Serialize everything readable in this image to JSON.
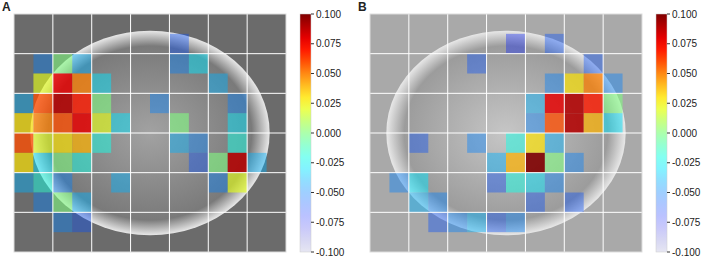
{
  "chart_data": [
    {
      "type": "heatmap",
      "title": "A",
      "xlim": [
        0,
        70
      ],
      "ylim": [
        0,
        60
      ],
      "xticks": [
        10,
        20,
        30,
        40,
        50,
        60
      ],
      "yticks": [
        10,
        20,
        30,
        40,
        50
      ],
      "grid": true,
      "tick_labels": false,
      "cells": [
        [
          null,
          null,
          null,
          null,
          null,
          null,
          null,
          null,
          null,
          null,
          null,
          null,
          null,
          null
        ],
        [
          null,
          null,
          null,
          null,
          null,
          null,
          null,
          null,
          -0.06,
          null,
          null,
          null,
          null,
          null
        ],
        [
          null,
          -0.05,
          0.0,
          -0.04,
          null,
          null,
          null,
          null,
          -0.05,
          -0.03,
          null,
          null,
          null,
          null
        ],
        [
          null,
          0.02,
          0.08,
          0.05,
          -0.03,
          null,
          null,
          null,
          null,
          null,
          -0.04,
          null,
          null,
          null
        ],
        [
          -0.04,
          0.06,
          0.09,
          0.07,
          0.0,
          null,
          null,
          -0.05,
          null,
          null,
          null,
          -0.05,
          null,
          null
        ],
        [
          0.03,
          0.05,
          0.06,
          0.08,
          0.02,
          -0.03,
          null,
          null,
          0.0,
          null,
          null,
          -0.03,
          null,
          null
        ],
        [
          0.06,
          0.02,
          0.03,
          0.04,
          -0.02,
          null,
          null,
          null,
          -0.04,
          -0.05,
          null,
          -0.02,
          null,
          null
        ],
        [
          0.03,
          -0.03,
          0.0,
          -0.02,
          null,
          null,
          null,
          null,
          null,
          -0.06,
          0.0,
          0.09,
          -0.04,
          null
        ],
        [
          -0.04,
          -0.02,
          -0.05,
          null,
          null,
          -0.04,
          null,
          null,
          null,
          null,
          -0.05,
          0.02,
          null,
          null
        ],
        [
          null,
          -0.05,
          0.0,
          -0.04,
          null,
          null,
          null,
          null,
          null,
          null,
          null,
          null,
          null,
          null
        ],
        [
          null,
          null,
          -0.05,
          -0.06,
          null,
          null,
          null,
          null,
          null,
          null,
          null,
          null,
          null,
          null
        ],
        [
          null,
          null,
          null,
          null,
          null,
          null,
          null,
          null,
          null,
          null,
          null,
          null,
          null,
          null
        ]
      ],
      "colorbar_range": [
        -0.1,
        0.1
      ],
      "colorbar_ticks": [
        {
          "value": 0.1,
          "label": "0.100"
        },
        0.075,
        {
          "value": 0.05,
          "label": "0.050"
        },
        0.025,
        {
          "value": 0,
          "label": "0.000"
        },
        -0.025,
        {
          "value": -0.05,
          "label": "-0.050"
        },
        -0.075,
        {
          "value": -0.1,
          "label": "-0.100"
        }
      ]
    },
    {
      "type": "heatmap",
      "title": "B",
      "xlim": [
        0,
        70
      ],
      "ylim": [
        0,
        60
      ],
      "xticks": [
        10,
        20,
        30,
        40,
        50,
        60
      ],
      "yticks": [
        10,
        20,
        30,
        40,
        50
      ],
      "grid": true,
      "tick_labels": false,
      "cells": [
        [
          null,
          null,
          null,
          null,
          null,
          null,
          null,
          null,
          null,
          null,
          null,
          null,
          null,
          null
        ],
        [
          null,
          null,
          null,
          null,
          null,
          null,
          null,
          -0.07,
          null,
          -0.06,
          null,
          null,
          null,
          null
        ],
        [
          null,
          null,
          null,
          null,
          null,
          -0.06,
          null,
          null,
          null,
          null,
          null,
          -0.06,
          null,
          null
        ],
        [
          null,
          null,
          null,
          null,
          null,
          null,
          null,
          null,
          null,
          -0.05,
          0.03,
          0.05,
          -0.05,
          null
        ],
        [
          null,
          null,
          null,
          null,
          null,
          null,
          null,
          null,
          -0.04,
          0.08,
          0.09,
          0.07,
          0.0,
          null
        ],
        [
          null,
          null,
          null,
          null,
          null,
          null,
          null,
          null,
          -0.05,
          0.06,
          0.09,
          0.04,
          -0.03,
          null
        ],
        [
          null,
          null,
          -0.06,
          null,
          null,
          -0.05,
          null,
          -0.02,
          0.03,
          -0.04,
          null,
          null,
          null,
          null
        ],
        [
          null,
          null,
          null,
          null,
          null,
          null,
          -0.04,
          0.04,
          0.1,
          0.0,
          -0.05,
          null,
          null,
          null
        ],
        [
          null,
          -0.05,
          -0.03,
          null,
          null,
          null,
          -0.06,
          -0.02,
          -0.03,
          -0.05,
          null,
          null,
          null,
          null
        ],
        [
          null,
          null,
          -0.04,
          -0.05,
          null,
          null,
          null,
          null,
          -0.06,
          null,
          -0.06,
          null,
          null,
          null
        ],
        [
          null,
          null,
          null,
          -0.06,
          -0.05,
          -0.04,
          -0.06,
          -0.05,
          null,
          null,
          null,
          null,
          null,
          null
        ],
        [
          null,
          null,
          null,
          null,
          null,
          null,
          null,
          null,
          null,
          null,
          null,
          null,
          null,
          null
        ]
      ],
      "colorbar_range": [
        -0.1,
        0.1
      ],
      "colorbar_ticks": [
        {
          "value": 0.1,
          "label": "0.100"
        },
        0.075,
        {
          "value": 0.05,
          "label": "0.050"
        },
        0.025,
        {
          "value": 0,
          "label": "0.000"
        },
        -0.025,
        {
          "value": -0.05,
          "label": "-0.050"
        },
        -0.075,
        {
          "value": -0.1,
          "label": "-0.100"
        }
      ]
    }
  ]
}
